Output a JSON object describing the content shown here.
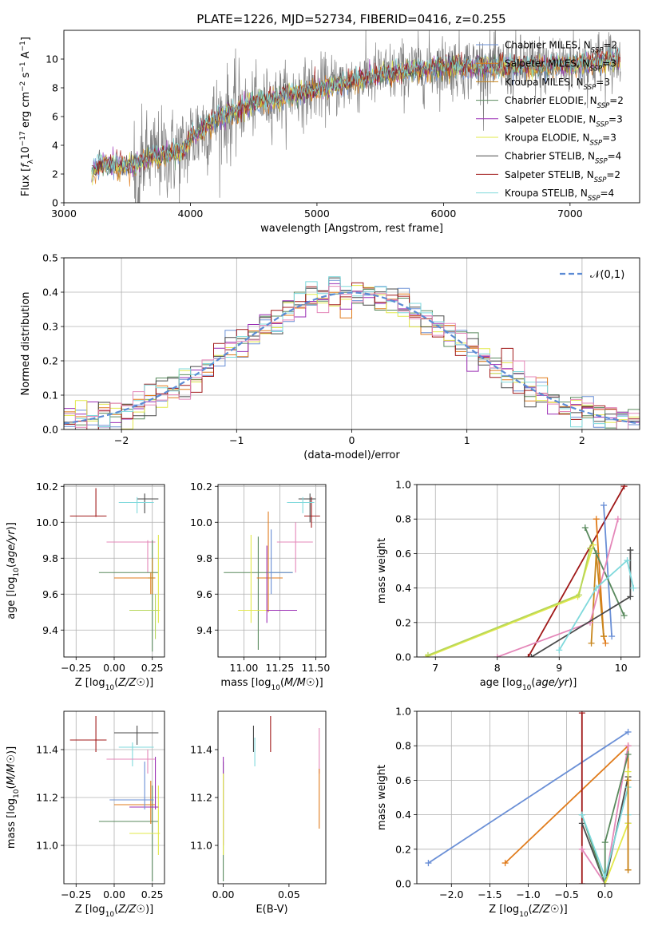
{
  "figure_title": "PLATE=1226, MJD=52734, FIBERID=0416, z=0.255",
  "colors": {
    "Chabrier MILES": "#6a8fd6",
    "Salpeter MILES": "#e07b1b",
    "Kroupa MILES": "#c8861c",
    "Chabrier ELODIE": "#5a8a5e",
    "Salpeter ELODIE": "#9b2fb5",
    "Kroupa ELODIE": "#e2e84a",
    "Chabrier STELIB": "#4a4a4a",
    "Salpeter STELIB": "#a01818",
    "Kroupa STELIB": "#7fd9dc",
    "Kroupa MILES pink": "#e487b9",
    "Kroupa ELODIE green": "#b6d65a",
    "data": "#808080"
  },
  "chart_data": [
    {
      "id": "spectrum",
      "type": "line",
      "title": "PLATE=1226, MJD=52734, FIBERID=0416, z=0.255",
      "xlabel": "wavelength [Angstrom, rest frame]",
      "ylabel": "Flux [f_λ 10^-17 erg cm^-2 s^-1 A^-1]",
      "xlim": [
        3000,
        7550
      ],
      "ylim": [
        0,
        12
      ],
      "xticks": [
        "3000",
        "4000",
        "5000",
        "6000",
        "7000"
      ],
      "yticks": [
        "0",
        "2",
        "4",
        "6",
        "8",
        "10"
      ],
      "data_range": [
        3220,
        7400
      ],
      "legend_position": "upper right",
      "legend": [
        {
          "name": "Chabrier MILES",
          "nssp": "2"
        },
        {
          "name": "Salpeter MILES",
          "nssp": "3"
        },
        {
          "name": "Kroupa MILES",
          "nssp": "3"
        },
        {
          "name": "Chabrier ELODIE",
          "nssp": "2"
        },
        {
          "name": "Salpeter ELODIE",
          "nssp": "3"
        },
        {
          "name": "Kroupa ELODIE",
          "nssp": "3"
        },
        {
          "name": "Chabrier STELIB",
          "nssp": "4"
        },
        {
          "name": "Salpeter STELIB",
          "nssp": "2"
        },
        {
          "name": "Kroupa STELIB",
          "nssp": "4"
        }
      ],
      "continuum": [
        [
          3220,
          2.2
        ],
        [
          3300,
          2.8
        ],
        [
          3500,
          2.5
        ],
        [
          3700,
          3.2
        ],
        [
          3950,
          3.6
        ],
        [
          4000,
          4.5
        ],
        [
          4200,
          5.8
        ],
        [
          4500,
          6.9
        ],
        [
          5000,
          7.9
        ],
        [
          5500,
          8.9
        ],
        [
          6000,
          9.5
        ],
        [
          6500,
          9.4
        ],
        [
          7000,
          9.6
        ],
        [
          7400,
          10.0
        ]
      ]
    },
    {
      "id": "residuals",
      "type": "line",
      "xlabel": "(data-model)/error",
      "ylabel": "Normed distribution",
      "xlim": [
        -2.5,
        2.5
      ],
      "ylim": [
        0,
        0.5
      ],
      "xticks": [
        "−2",
        "−1",
        "0",
        "1",
        "2"
      ],
      "yticks": [
        "0.0",
        "0.1",
        "0.2",
        "0.3",
        "0.4",
        "0.5"
      ],
      "legend": "𝒩(0,1)",
      "legend_position": "upper right",
      "grid": true
    },
    {
      "id": "age_Z",
      "type": "scatter",
      "xlabel": "Z [log10(Z/Z☉)]",
      "ylabel": "age [log10(age/yr)]",
      "xlim": [
        -0.33,
        0.33
      ],
      "ylim": [
        9.25,
        10.21
      ],
      "xticks": [
        "−0.25",
        "0.00",
        "0.25"
      ],
      "yticks": [
        "9.4",
        "9.6",
        "9.8",
        "10.0",
        "10.2"
      ],
      "grid": true,
      "points": [
        {
          "x": -0.12,
          "y": 10.035,
          "xlo": -0.29,
          "xhi": -0.05,
          "ylo": 10.03,
          "yhi": 10.19,
          "color": "#a01818"
        },
        {
          "x": 0.2,
          "y": 10.13,
          "xlo": 0.15,
          "xhi": 0.29,
          "ylo": 10.05,
          "yhi": 10.16,
          "color": "#4a4a4a"
        },
        {
          "x": 0.15,
          "y": 10.11,
          "xlo": 0.03,
          "xhi": 0.26,
          "ylo": 10.05,
          "yhi": 10.14,
          "color": "#7fd9dc"
        },
        {
          "x": 0.22,
          "y": 9.89,
          "xlo": -0.05,
          "xhi": 0.27,
          "ylo": 9.72,
          "yhi": 9.9,
          "color": "#e487b9"
        },
        {
          "x": 0.25,
          "y": 9.72,
          "xlo": -0.1,
          "xhi": 0.29,
          "ylo": 9.28,
          "yhi": 9.9,
          "color": "#5a8a5e"
        },
        {
          "x": 0.24,
          "y": 9.69,
          "xlo": -0.0,
          "xhi": 0.27,
          "ylo": 9.6,
          "yhi": 9.72,
          "color": "#e07b1b"
        },
        {
          "x": 0.29,
          "y": 9.51,
          "xlo": 0.1,
          "xhi": 0.3,
          "ylo": 9.44,
          "yhi": 9.93,
          "color": "#e2e84a"
        },
        {
          "x": 0.27,
          "y": 9.51,
          "xlo": 0.1,
          "xhi": 0.29,
          "ylo": 9.35,
          "yhi": 9.6,
          "color": "#b6d65a"
        },
        {
          "x": 0.25,
          "y": 9.69,
          "xlo": 0.22,
          "xhi": 0.26,
          "ylo": 9.6,
          "yhi": 9.8,
          "color": "#c8861c"
        }
      ]
    },
    {
      "id": "age_mass",
      "type": "scatter",
      "xlabel": "mass [log10(M/M☉)]",
      "ylabel": "",
      "xlim": [
        10.82,
        11.57
      ],
      "ylim": [
        9.25,
        10.21
      ],
      "xticks": [
        "11.00",
        "11.25",
        "11.50"
      ],
      "yticks": [
        "9.4",
        "9.6",
        "9.8",
        "10.0",
        "10.2"
      ],
      "grid": true,
      "points": [
        {
          "x": 11.47,
          "y": 10.035,
          "xlo": 11.42,
          "xhi": 11.53,
          "ylo": 9.97,
          "yhi": 10.14,
          "color": "#a01818"
        },
        {
          "x": 11.46,
          "y": 10.13,
          "xlo": 11.38,
          "xhi": 11.5,
          "ylo": 10.0,
          "yhi": 10.16,
          "color": "#4a4a4a"
        },
        {
          "x": 11.41,
          "y": 10.11,
          "xlo": 11.3,
          "xhi": 11.49,
          "ylo": 10.05,
          "yhi": 10.14,
          "color": "#7fd9dc"
        },
        {
          "x": 11.36,
          "y": 9.89,
          "xlo": 11.23,
          "xhi": 11.48,
          "ylo": 9.72,
          "yhi": 10.0,
          "color": "#e487b9"
        },
        {
          "x": 11.1,
          "y": 9.72,
          "xlo": 10.86,
          "xhi": 11.34,
          "ylo": 9.29,
          "yhi": 9.92,
          "color": "#5a8a5e"
        },
        {
          "x": 11.17,
          "y": 9.69,
          "xlo": 11.09,
          "xhi": 11.27,
          "ylo": 9.5,
          "yhi": 10.06,
          "color": "#e07b1b"
        },
        {
          "x": 11.05,
          "y": 9.51,
          "xlo": 10.96,
          "xhi": 11.18,
          "ylo": 9.44,
          "yhi": 9.93,
          "color": "#e2e84a"
        },
        {
          "x": 11.16,
          "y": 9.51,
          "xlo": 11.16,
          "xhi": 11.37,
          "ylo": 9.44,
          "yhi": 9.87,
          "color": "#9b2fb5"
        },
        {
          "x": 11.19,
          "y": 9.72,
          "xlo": 11.17,
          "xhi": 11.34,
          "ylo": 9.6,
          "yhi": 9.96,
          "color": "#6a8fd6"
        }
      ]
    },
    {
      "id": "weight_age",
      "type": "line",
      "xlabel": "age [log10(age/yr)]",
      "ylabel": "mass weight",
      "xlim": [
        6.7,
        10.3
      ],
      "ylim": [
        0,
        1
      ],
      "xticks": [
        "7",
        "8",
        "9",
        "10"
      ],
      "yticks": [
        "0.0",
        "0.2",
        "0.4",
        "0.6",
        "0.8",
        "1.0"
      ],
      "grid": true,
      "series": [
        {
          "color": "#a01818",
          "x": [
            8.5,
            10.05
          ],
          "y": [
            0.0,
            0.99
          ]
        },
        {
          "color": "#6a8fd6",
          "x": [
            9.72,
            9.85
          ],
          "y": [
            0.88,
            0.12
          ]
        },
        {
          "color": "#e07b1b",
          "x": [
            9.6,
            9.72,
            9.75
          ],
          "y": [
            0.8,
            0.12,
            0.08
          ]
        },
        {
          "color": "#c8861c",
          "x": [
            9.52,
            9.6,
            9.72
          ],
          "y": [
            0.08,
            0.6,
            0.12
          ]
        },
        {
          "color": "#5a8a5e",
          "x": [
            9.42,
            9.6,
            10.05
          ],
          "y": [
            0.75,
            0.6,
            0.24
          ]
        },
        {
          "color": "#e487b9",
          "x": [
            8.0,
            9.5,
            9.95
          ],
          "y": [
            0.0,
            0.2,
            0.8
          ]
        },
        {
          "color": "#e2e84a",
          "x": [
            6.85,
            9.3,
            9.55
          ],
          "y": [
            0.0,
            0.35,
            0.65
          ]
        },
        {
          "color": "#b6d65a",
          "x": [
            6.88,
            9.32,
            9.5
          ],
          "y": [
            0.01,
            0.36,
            0.63
          ]
        },
        {
          "color": "#4a4a4a",
          "x": [
            8.55,
            10.15,
            10.15
          ],
          "y": [
            0.0,
            0.35,
            0.62
          ]
        },
        {
          "color": "#7fd9dc",
          "x": [
            9.0,
            9.6,
            10.1,
            10.2
          ],
          "y": [
            0.04,
            0.4,
            0.56,
            0.4
          ]
        }
      ]
    },
    {
      "id": "mass_Z",
      "type": "scatter",
      "xlabel": "Z [log10(Z/Z☉)]",
      "ylabel": "mass [log10(M/M☉)]",
      "xlim": [
        -0.33,
        0.33
      ],
      "ylim": [
        10.84,
        11.56
      ],
      "xticks": [
        "−0.25",
        "0.00",
        "0.25"
      ],
      "yticks": [
        "11.0",
        "11.2",
        "11.4"
      ],
      "grid": true,
      "points": [
        {
          "x": -0.12,
          "y": 11.44,
          "xlo": -0.29,
          "xhi": -0.05,
          "ylo": 11.39,
          "yhi": 11.54,
          "color": "#a01818"
        },
        {
          "x": 0.15,
          "y": 11.47,
          "xlo": 0.0,
          "xhi": 0.29,
          "ylo": 11.42,
          "yhi": 11.5,
          "color": "#4a4a4a"
        },
        {
          "x": 0.12,
          "y": 11.41,
          "xlo": 0.03,
          "xhi": 0.26,
          "ylo": 11.33,
          "yhi": 11.43,
          "color": "#7fd9dc"
        },
        {
          "x": 0.22,
          "y": 11.36,
          "xlo": -0.05,
          "xhi": 0.27,
          "ylo": 11.3,
          "yhi": 11.4,
          "color": "#e487b9"
        },
        {
          "x": 0.25,
          "y": 11.1,
          "xlo": -0.1,
          "xhi": 0.29,
          "ylo": 10.85,
          "yhi": 11.25,
          "color": "#5a8a5e"
        },
        {
          "x": 0.24,
          "y": 11.17,
          "xlo": -0.0,
          "xhi": 0.27,
          "ylo": 11.09,
          "yhi": 11.27,
          "color": "#e07b1b"
        },
        {
          "x": 0.29,
          "y": 11.05,
          "xlo": 0.1,
          "xhi": 0.3,
          "ylo": 10.96,
          "yhi": 11.25,
          "color": "#e2e84a"
        },
        {
          "x": 0.27,
          "y": 11.16,
          "xlo": 0.1,
          "xhi": 0.29,
          "ylo": 11.15,
          "yhi": 11.37,
          "color": "#9b2fb5"
        },
        {
          "x": 0.2,
          "y": 11.19,
          "xlo": -0.03,
          "xhi": 0.26,
          "ylo": 11.15,
          "yhi": 11.35,
          "color": "#6a8fd6"
        }
      ]
    },
    {
      "id": "mass_ebv",
      "type": "scatter",
      "xlabel": "E(B-V)",
      "ylabel": "",
      "xlim": [
        -0.004,
        0.078
      ],
      "ylim": [
        10.84,
        11.56
      ],
      "xticks": [
        "0.00",
        "0.05"
      ],
      "yticks": [
        "11.0",
        "11.2",
        "11.4"
      ],
      "grid": false,
      "points": [
        {
          "x": 0.023,
          "y": 11.44,
          "ylo": 11.39,
          "yhi": 11.5,
          "color": "#4a4a4a"
        },
        {
          "x": 0.024,
          "y": 11.41,
          "ylo": 11.33,
          "yhi": 11.45,
          "color": "#7fd9dc"
        },
        {
          "x": 0.036,
          "y": 11.44,
          "ylo": 11.39,
          "yhi": 11.54,
          "color": "#a01818"
        },
        {
          "x": 0.073,
          "y": 11.36,
          "ylo": 11.3,
          "yhi": 11.49,
          "color": "#e487b9"
        },
        {
          "x": 0.073,
          "y": 11.17,
          "ylo": 11.07,
          "yhi": 11.32,
          "color": "#e07b1b"
        },
        {
          "x": 0.0,
          "y": 11.1,
          "ylo": 10.85,
          "yhi": 11.35,
          "color": "#5a8a5e"
        },
        {
          "x": 0.0,
          "y": 11.16,
          "ylo": 11.0,
          "yhi": 11.37,
          "color": "#9b2fb5"
        },
        {
          "x": 0.0,
          "y": 11.05,
          "ylo": 10.96,
          "yhi": 11.3,
          "color": "#e2e84a"
        }
      ]
    },
    {
      "id": "weight_Z",
      "type": "line",
      "xlabel": "Z [log10(Z/Z☉)]",
      "ylabel": "mass weight",
      "xlim": [
        -2.45,
        0.45
      ],
      "ylim": [
        0,
        1
      ],
      "xticks": [
        "−2.0",
        "−1.5",
        "−1.0",
        "−0.5",
        "0.0"
      ],
      "yticks": [
        "0.0",
        "0.2",
        "0.4",
        "0.6",
        "0.8",
        "1.0"
      ],
      "grid": true,
      "series": [
        {
          "color": "#6a8fd6",
          "x": [
            -2.3,
            0.3
          ],
          "y": [
            0.12,
            0.88
          ]
        },
        {
          "color": "#e07b1b",
          "x": [
            -1.3,
            0.3,
            0.3
          ],
          "y": [
            0.12,
            0.8,
            0.08
          ]
        },
        {
          "color": "#a01818",
          "x": [
            -0.3,
            -0.3
          ],
          "y": [
            0.0,
            0.99
          ]
        },
        {
          "color": "#e487b9",
          "x": [
            -0.3,
            0.0,
            0.3
          ],
          "y": [
            0.2,
            0.0,
            0.8
          ]
        },
        {
          "color": "#4a4a4a",
          "x": [
            -0.3,
            0.0,
            0.3,
            0.3
          ],
          "y": [
            0.35,
            0.0,
            0.62,
            0.35
          ]
        },
        {
          "color": "#5a8a5e",
          "x": [
            -0.3,
            0.0,
            0.0,
            0.3
          ],
          "y": [
            0.4,
            0.0,
            0.24,
            0.75
          ]
        },
        {
          "color": "#7fd9dc",
          "x": [
            -0.3,
            0.0,
            0.3,
            0.3
          ],
          "y": [
            0.4,
            0.04,
            0.56,
            0.4
          ]
        },
        {
          "color": "#e2e84a",
          "x": [
            0.0,
            0.3,
            0.3
          ],
          "y": [
            0.0,
            0.35,
            0.65
          ]
        },
        {
          "color": "#c8861c",
          "x": [
            0.3,
            0.3
          ],
          "y": [
            0.08,
            0.6
          ]
        }
      ]
    }
  ]
}
